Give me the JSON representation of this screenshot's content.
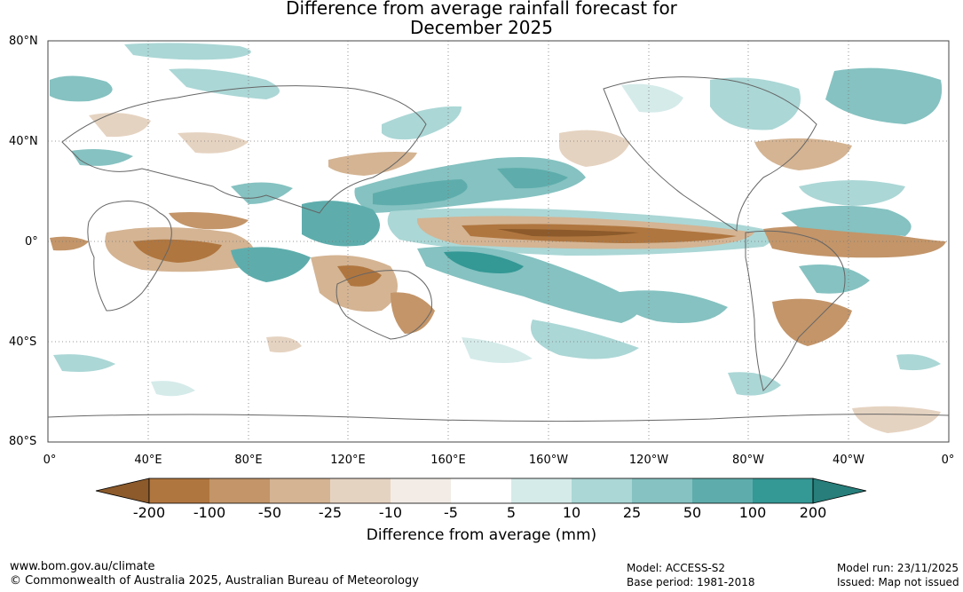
{
  "title_line1": "Difference from average rainfall forecast for",
  "title_line2": "December 2025",
  "lat_labels": [
    "80°N",
    "40°N",
    "0°",
    "40°S",
    "80°S"
  ],
  "lon_labels": [
    "0°",
    "40°E",
    "80°E",
    "120°E",
    "160°E",
    "160°W",
    "120°W",
    "80°W",
    "40°W",
    "0°"
  ],
  "colorbar": {
    "ticks": [
      "-200",
      "-100",
      "-50",
      "-25",
      "-10",
      "-5",
      "5",
      "10",
      "25",
      "50",
      "100",
      "200"
    ],
    "title": "Difference from average (mm)",
    "colors": {
      "below_-200": "#8c5a2b",
      "-200_-100": "#b0763f",
      "-100_-50": "#c39569",
      "-50_-25": "#d4b493",
      "-25_-10": "#e5d3c1",
      "-10_-5": "#f3ece6",
      "-5_5": "#ffffff",
      "5_10": "#d5ebea",
      "10_25": "#abd7d6",
      "25_50": "#85c2c1",
      "50_100": "#5eadac",
      "100_200": "#349895",
      "above_200": "#277e7b"
    }
  },
  "footer": {
    "url": "www.bom.gov.au/climate",
    "copyright": "© Commonwealth of Australia 2025, Australian Bureau of Meteorology",
    "model": "Model: ACCESS-S2",
    "base_period": "Base period: 1981-2018",
    "model_run": "Model run: 23/11/2025",
    "issued": "Issued: Map not issued"
  }
}
